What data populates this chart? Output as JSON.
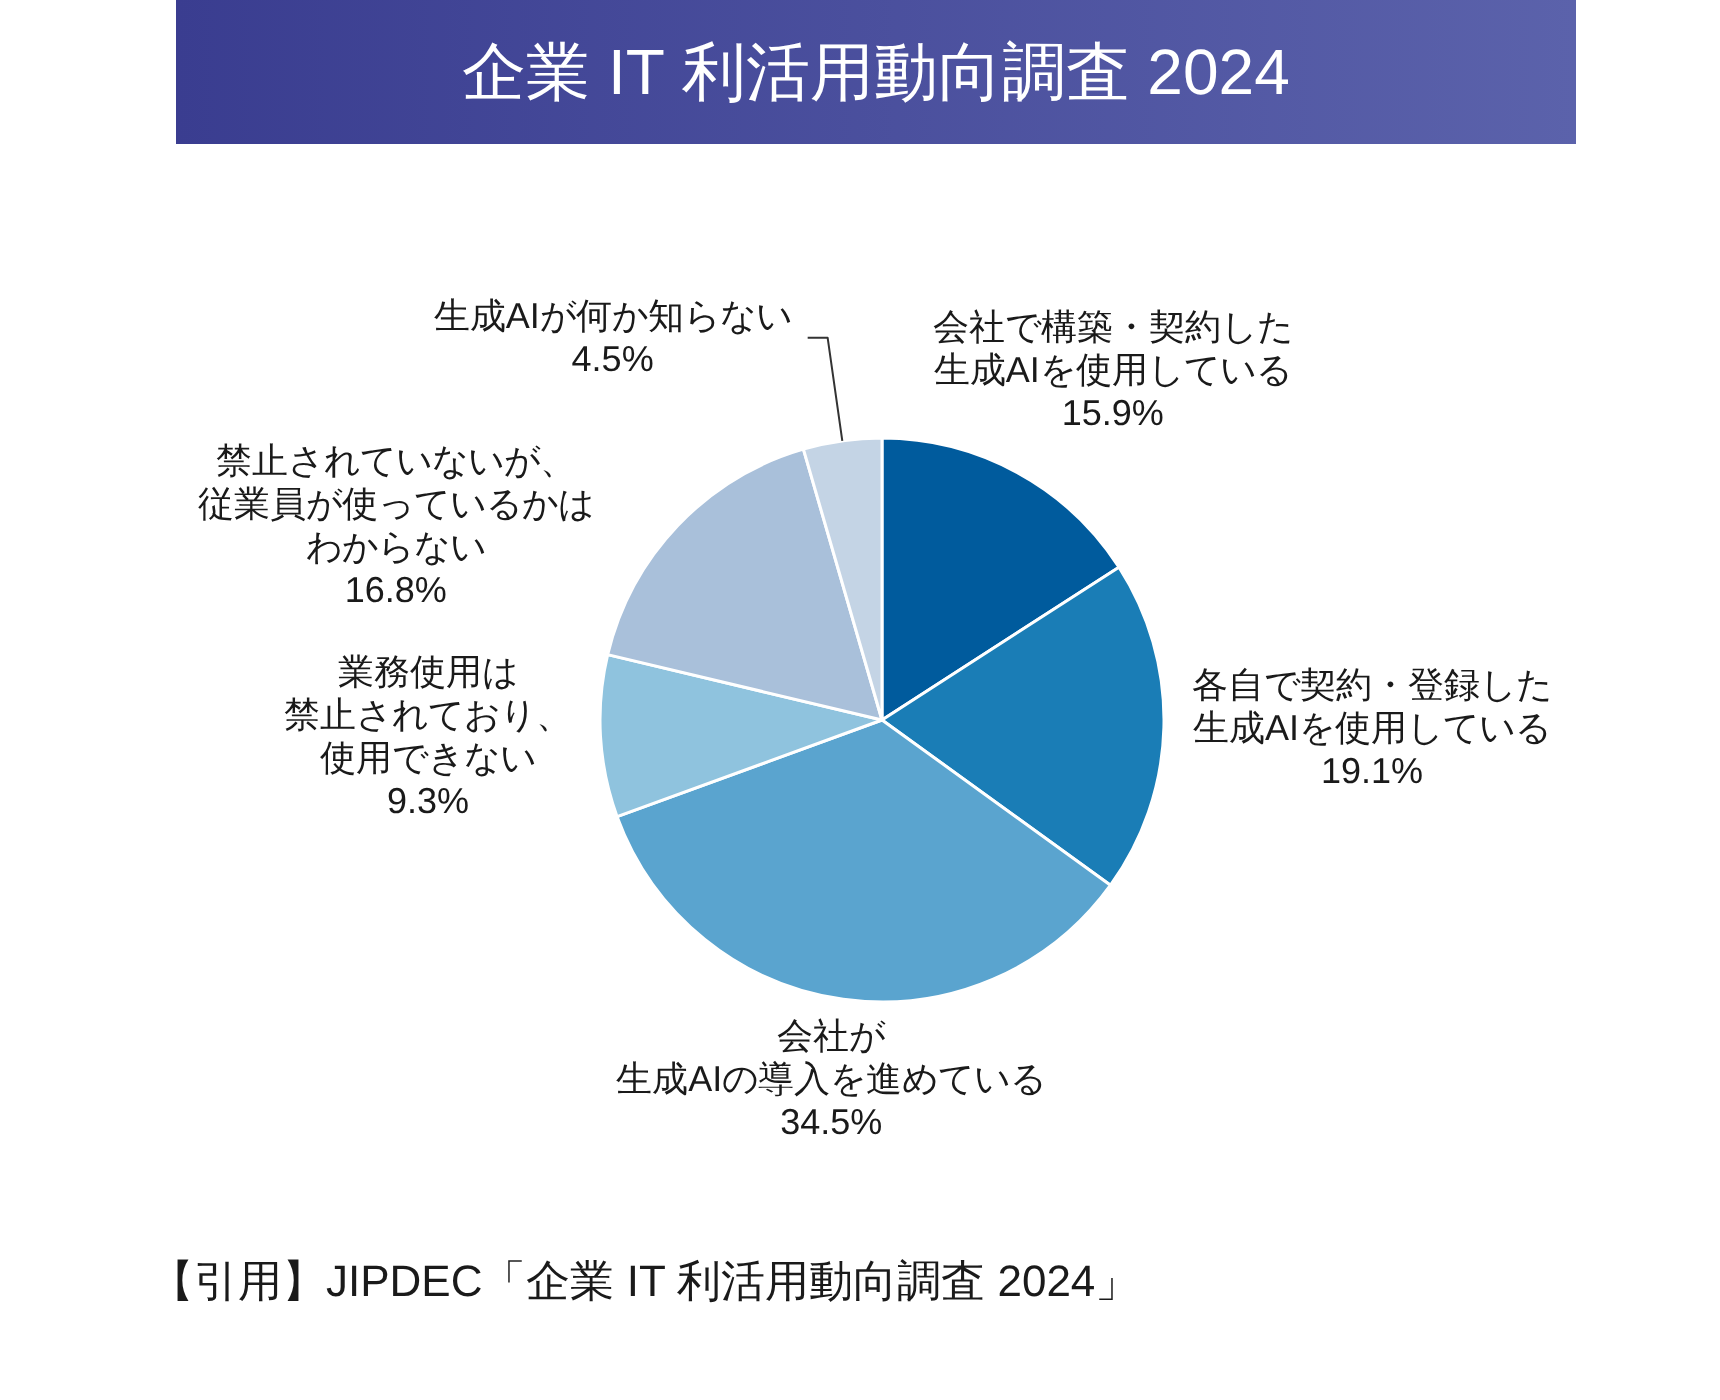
{
  "chart_data": {
    "type": "pie",
    "title": "企業 IT 利活用動向調査 2024",
    "categories": [
      "会社で構築・契約した生成AIを使用している",
      "各自で契約・登録した生成AIを使用している",
      "会社が生成AIの導入を進めている",
      "業務使用は禁止されており、使用できない",
      "禁止されていないが、従業員が使っているかはわからない",
      "生成AIが何か知らない"
    ],
    "values": [
      15.9,
      19.1,
      34.5,
      9.3,
      16.8,
      4.5
    ],
    "colors": [
      "#005b9d",
      "#1a7db6",
      "#5aa4cf",
      "#8fc3de",
      "#a9c0da",
      "#c4d4e5"
    ],
    "value_labels": [
      "15.9%",
      "19.1%",
      "34.5%",
      "9.3%",
      "16.8%",
      "4.5%"
    ],
    "annotations": [
      "【引用】JIPDEC「企業 IT 利活用動向調査 2024」"
    ]
  }
}
